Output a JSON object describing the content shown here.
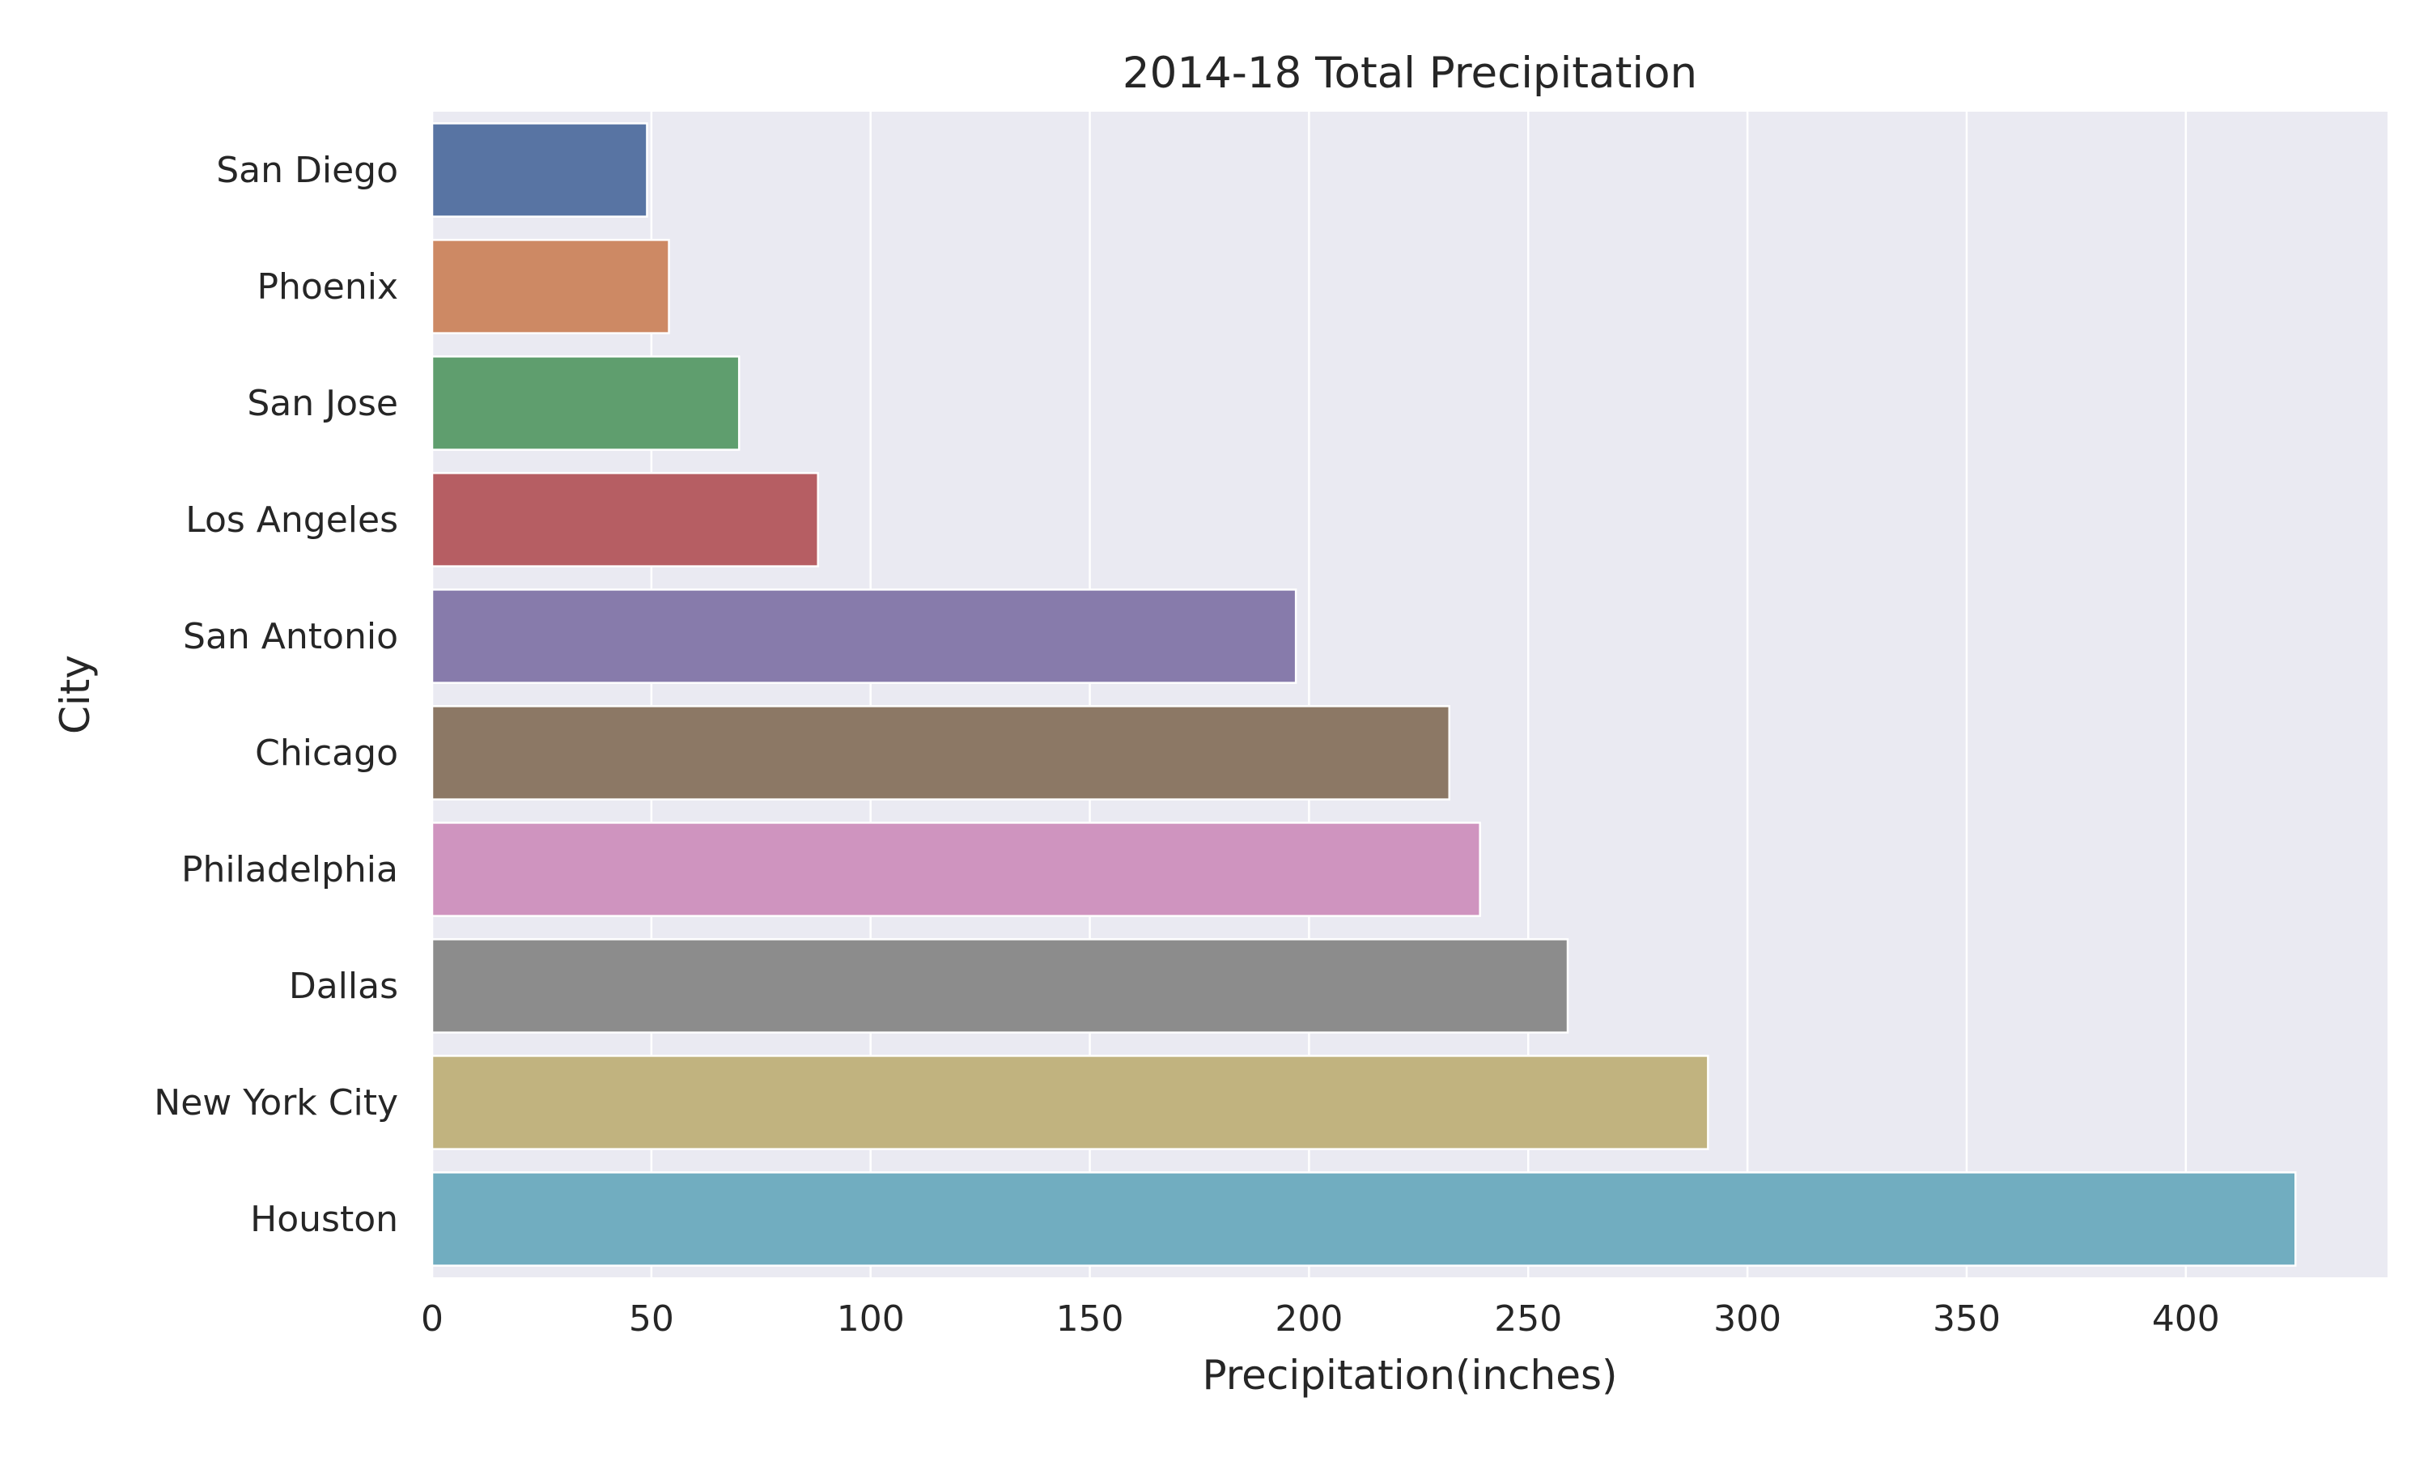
{
  "chart_data": {
    "type": "bar",
    "orientation": "horizontal",
    "title": "2014-18 Total Precipitation",
    "xlabel": "Precipitation(inches)",
    "ylabel": "City",
    "categories": [
      "San Diego",
      "Phoenix",
      "San Jose",
      "Los Angeles",
      "San Antonio",
      "Chicago",
      "Philadelphia",
      "Dallas",
      "New York City",
      "Houston"
    ],
    "values": [
      49,
      54,
      70,
      88,
      197,
      232,
      239,
      259,
      291,
      425
    ],
    "xlim": [
      0,
      446
    ],
    "xticks": [
      0,
      50,
      100,
      150,
      200,
      250,
      300,
      350,
      400
    ],
    "colors": [
      "#5874a3",
      "#cd8964",
      "#5f9e6e",
      "#b65e63",
      "#877bab",
      "#8c7865",
      "#cf94bf",
      "#8c8c8c",
      "#c1b37f",
      "#71adc0"
    ],
    "grid": true,
    "background": "#eaeaf2"
  }
}
